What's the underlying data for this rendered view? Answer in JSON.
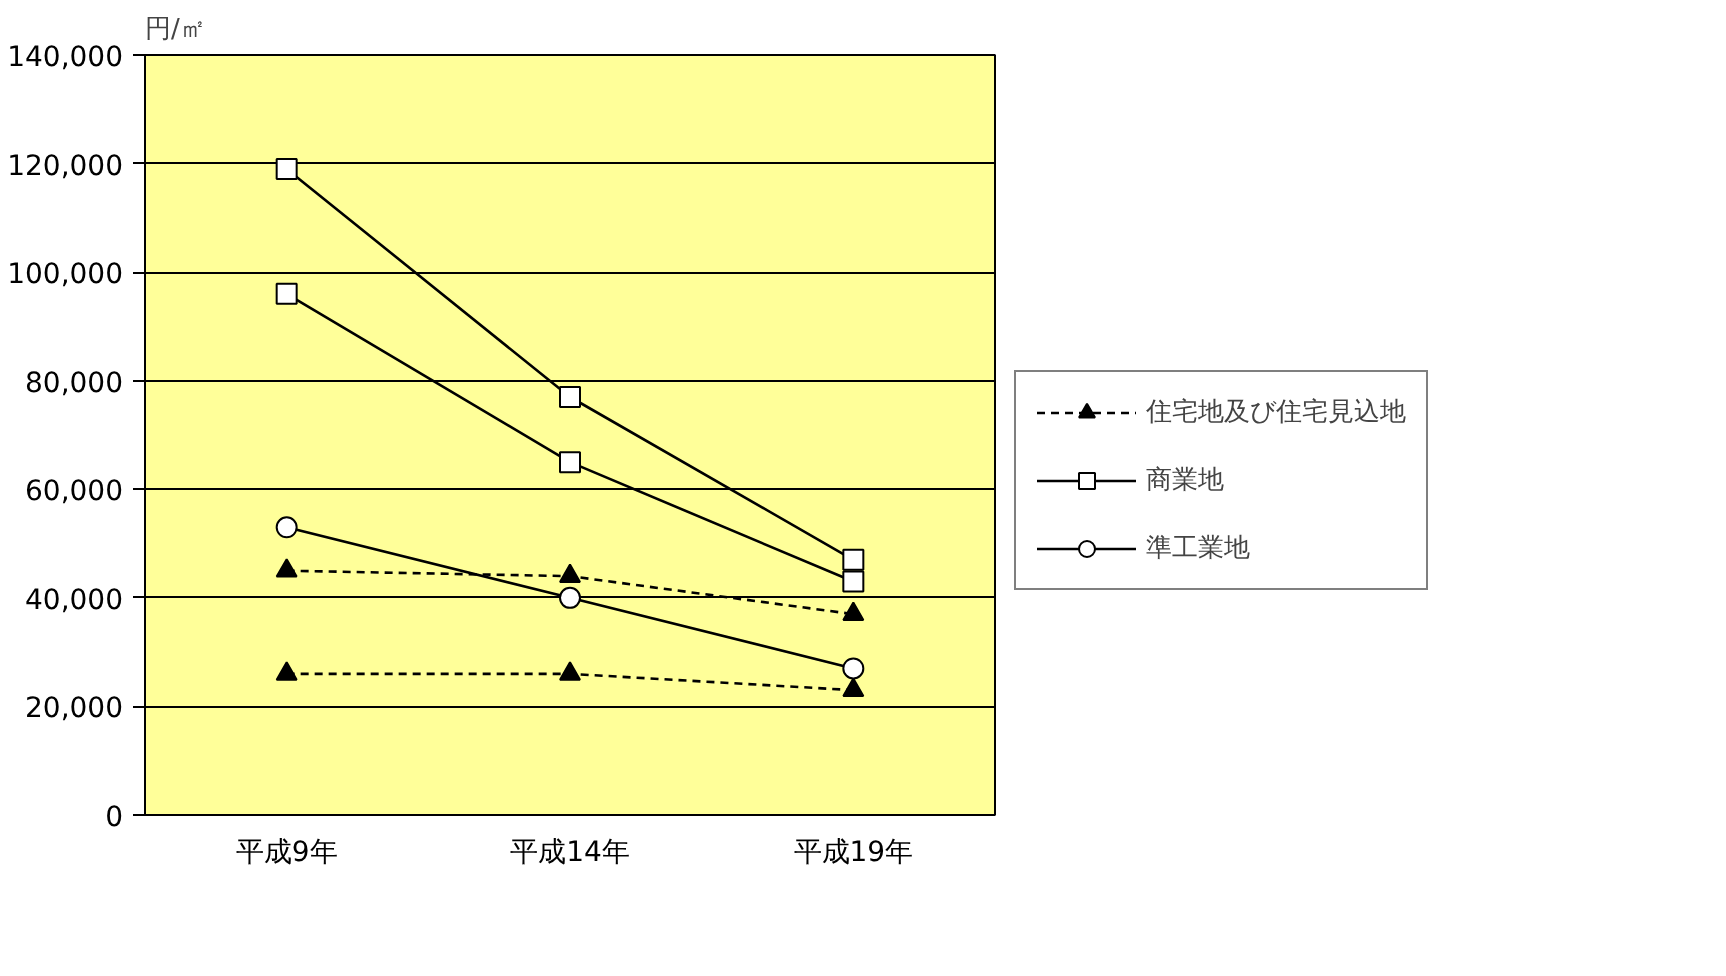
{
  "chart_data": {
    "type": "line",
    "ylabel": "円/㎡",
    "categories": [
      "平成9年",
      "平成14年",
      "平成19年"
    ],
    "series": [
      {
        "name": "住宅地及び住宅見込地",
        "color": "#000000",
        "marker": "triangle",
        "line_style": "dashed",
        "values": [
          45000,
          44000,
          37000
        ]
      },
      {
        "color": "#000000",
        "marker": "triangle",
        "line_style": "dashed",
        "values": [
          26000,
          26000,
          23000
        ]
      },
      {
        "name": "商業地",
        "color": "#000000",
        "marker": "square",
        "line_style": "solid",
        "values": [
          119000,
          77000,
          47000
        ]
      },
      {
        "color": "#000000",
        "marker": "square",
        "line_style": "solid",
        "values": [
          96000,
          65000,
          43000
        ]
      },
      {
        "name": "準工業地",
        "color": "#000000",
        "marker": "circle",
        "line_style": "solid",
        "values": [
          53000,
          40000,
          27000
        ]
      }
    ],
    "ylim": [
      0,
      140000
    ],
    "yticks": [
      {
        "value": 0,
        "label": "0"
      },
      {
        "value": 20000,
        "label": "20,000"
      },
      {
        "value": 40000,
        "label": "40,000"
      },
      {
        "value": 60000,
        "label": "60,000"
      },
      {
        "value": 80000,
        "label": "80,000"
      },
      {
        "value": 100000,
        "label": "100,000"
      },
      {
        "value": 120000,
        "label": "120,000"
      },
      {
        "value": 140000,
        "label": "140,000"
      }
    ],
    "grid": "y",
    "legend": "right"
  }
}
